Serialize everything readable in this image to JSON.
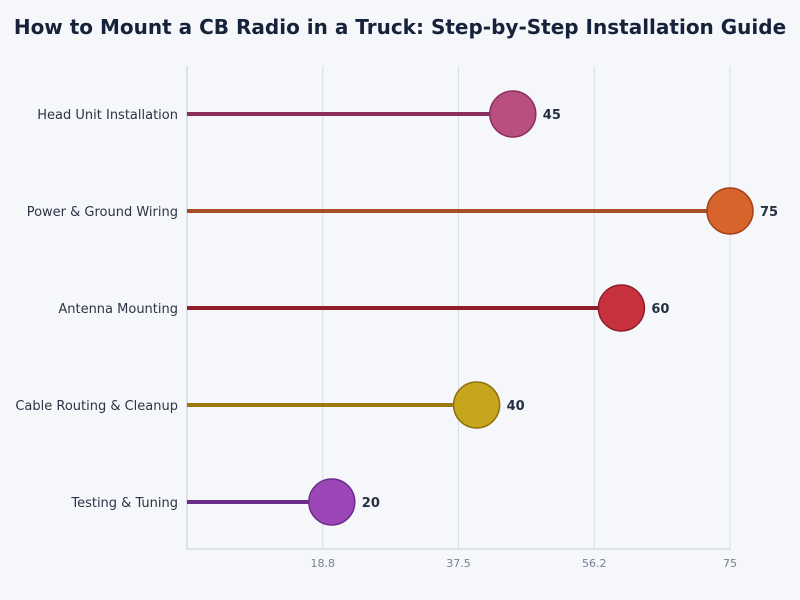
{
  "chart_data": {
    "type": "lollipop",
    "title": "How to Mount a CB Radio in a Truck: Step-by-Step Installation Guide",
    "xlabel": "",
    "ylabel": "",
    "xlim": [
      0,
      75
    ],
    "ticks": [
      "18.8",
      "37.5",
      "56.2",
      "75"
    ],
    "tick_values": [
      18.75,
      37.5,
      56.25,
      75
    ],
    "grid": true,
    "categories": [
      "Head Unit Installation",
      "Power & Ground Wiring",
      "Antenna Mounting",
      "Cable Routing & Cleanup",
      "Testing & Tuning"
    ],
    "values": [
      45,
      75,
      60,
      40,
      20
    ],
    "colors": [
      {
        "stem": "#8a2e5e",
        "fill": "#b94f80",
        "edge": "#8a2e5e"
      },
      {
        "stem": "#a84d24",
        "fill": "#d6642c",
        "edge": "#a14317"
      },
      {
        "stem": "#8f1f2a",
        "fill": "#c8323c",
        "edge": "#8f1f2a"
      },
      {
        "stem": "#9a7a10",
        "fill": "#c5a61c",
        "edge": "#8f700c"
      },
      {
        "stem": "#6b2c8a",
        "fill": "#9c46b8",
        "edge": "#6b2c8a"
      }
    ]
  }
}
